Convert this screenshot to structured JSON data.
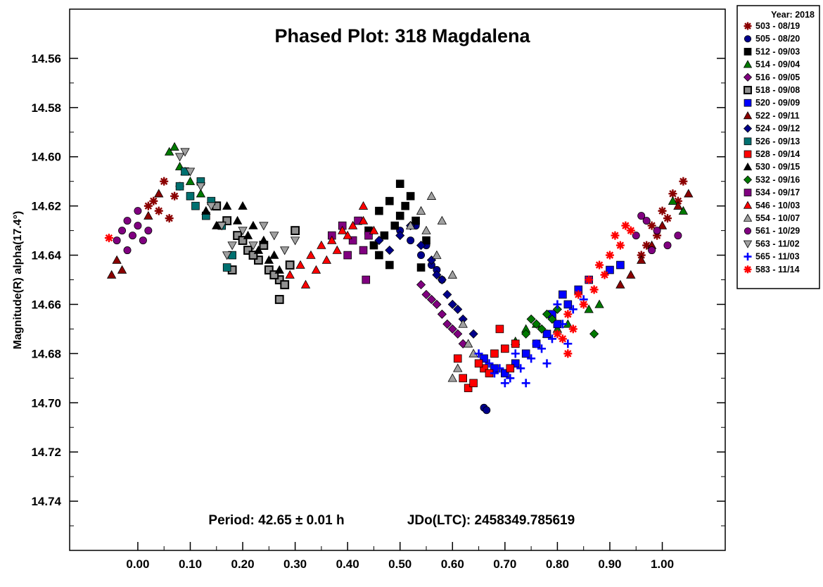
{
  "chart_data": {
    "type": "scatter",
    "title": "Phased Plot: 318 Magdalena",
    "ylabel": "Magnitude(R) alpha(17.4°)",
    "xlabel": "",
    "xlim": [
      -0.13,
      1.12
    ],
    "ylim": [
      14.76,
      14.54
    ],
    "y_inverted": true,
    "xticks": [
      "0.00",
      "0.10",
      "0.20",
      "0.30",
      "0.40",
      "0.50",
      "0.60",
      "0.70",
      "0.80",
      "0.90",
      "1.00"
    ],
    "yticks": [
      "14.56",
      "14.58",
      "14.60",
      "14.62",
      "14.64",
      "14.66",
      "14.68",
      "14.70",
      "14.72",
      "14.74"
    ],
    "annotation_period": "Period: 42.65 ± 0.01 h",
    "annotation_epoch": "JDo(LTC): 2458349.785619",
    "legend_title": "Year: 2018",
    "legend_position": "outside-right",
    "series": [
      {
        "name": "503 - 08/19",
        "marker": "asterisk",
        "color": "#8b0000",
        "points": [
          [
            0.03,
            14.618
          ],
          [
            0.05,
            14.61
          ],
          [
            0.07,
            14.616
          ],
          [
            0.04,
            14.622
          ],
          [
            0.06,
            14.625
          ],
          [
            0.08,
            14.612
          ],
          [
            0.02,
            14.62
          ],
          [
            0.96,
            14.64
          ],
          [
            0.98,
            14.628
          ],
          [
            1.0,
            14.622
          ],
          [
            1.02,
            14.615
          ],
          [
            1.04,
            14.61
          ],
          [
            0.99,
            14.632
          ],
          [
            1.01,
            14.625
          ],
          [
            1.03,
            14.618
          ],
          [
            0.97,
            14.636
          ]
        ]
      },
      {
        "name": "505 - 08/20",
        "marker": "circle",
        "color": "#00008b",
        "points": [
          [
            0.5,
            14.63
          ],
          [
            0.52,
            14.634
          ],
          [
            0.54,
            14.64
          ],
          [
            0.56,
            14.644
          ],
          [
            0.58,
            14.65
          ],
          [
            0.53,
            14.628
          ],
          [
            0.55,
            14.636
          ],
          [
            0.57,
            14.646
          ],
          [
            0.66,
            14.702
          ],
          [
            0.665,
            14.703
          ]
        ]
      },
      {
        "name": "512 - 09/03",
        "marker": "square",
        "color": "#000000",
        "points": [
          [
            0.44,
            14.63
          ],
          [
            0.46,
            14.622
          ],
          [
            0.48,
            14.618
          ],
          [
            0.5,
            14.624
          ],
          [
            0.52,
            14.616
          ],
          [
            0.47,
            14.632
          ],
          [
            0.49,
            14.628
          ],
          [
            0.51,
            14.62
          ],
          [
            0.45,
            14.636
          ],
          [
            0.5,
            14.611
          ],
          [
            0.53,
            14.626
          ],
          [
            0.55,
            14.634
          ],
          [
            0.46,
            14.64
          ],
          [
            0.48,
            14.644
          ],
          [
            0.54,
            14.645
          ]
        ]
      },
      {
        "name": "514 - 09/04",
        "marker": "triangle",
        "color": "#007a00",
        "points": [
          [
            0.06,
            14.598
          ],
          [
            0.08,
            14.604
          ],
          [
            0.1,
            14.61
          ],
          [
            0.12,
            14.615
          ],
          [
            0.07,
            14.596
          ],
          [
            0.09,
            14.606
          ],
          [
            0.72,
            14.675
          ],
          [
            0.74,
            14.67
          ],
          [
            0.76,
            14.668
          ],
          [
            0.78,
            14.672
          ],
          [
            0.8,
            14.67
          ],
          [
            0.82,
            14.668
          ],
          [
            0.86,
            14.662
          ],
          [
            0.88,
            14.66
          ],
          [
            1.02,
            14.618
          ],
          [
            1.04,
            14.622
          ]
        ]
      },
      {
        "name": "516 - 09/05",
        "marker": "diamond",
        "color": "#800080",
        "points": [
          [
            0.54,
            14.652
          ],
          [
            0.56,
            14.658
          ],
          [
            0.58,
            14.664
          ],
          [
            0.6,
            14.67
          ],
          [
            0.62,
            14.676
          ],
          [
            0.57,
            14.66
          ],
          [
            0.59,
            14.668
          ],
          [
            0.61,
            14.672
          ],
          [
            0.55,
            14.656
          ]
        ]
      },
      {
        "name": "518 - 09/08",
        "marker": "square-grey",
        "color": "#909090",
        "points": [
          [
            0.15,
            14.62
          ],
          [
            0.17,
            14.626
          ],
          [
            0.19,
            14.632
          ],
          [
            0.21,
            14.638
          ],
          [
            0.23,
            14.642
          ],
          [
            0.25,
            14.646
          ],
          [
            0.27,
            14.65
          ],
          [
            0.29,
            14.644
          ],
          [
            0.2,
            14.634
          ],
          [
            0.22,
            14.64
          ],
          [
            0.24,
            14.636
          ],
          [
            0.26,
            14.648
          ],
          [
            0.28,
            14.652
          ],
          [
            0.27,
            14.658
          ],
          [
            0.18,
            14.646
          ],
          [
            0.3,
            14.63
          ]
        ]
      },
      {
        "name": "520 - 09/09",
        "marker": "square",
        "color": "#0000ff",
        "points": [
          [
            0.66,
            14.682
          ],
          [
            0.68,
            14.686
          ],
          [
            0.7,
            14.688
          ],
          [
            0.72,
            14.684
          ],
          [
            0.74,
            14.68
          ],
          [
            0.76,
            14.676
          ],
          [
            0.78,
            14.672
          ],
          [
            0.8,
            14.668
          ],
          [
            0.82,
            14.66
          ],
          [
            0.84,
            14.654
          ],
          [
            0.86,
            14.65
          ],
          [
            0.9,
            14.646
          ],
          [
            0.92,
            14.644
          ],
          [
            0.79,
            14.664
          ],
          [
            0.81,
            14.656
          ]
        ]
      },
      {
        "name": "522 - 09/11",
        "marker": "triangle",
        "color": "#8b0000",
        "points": [
          [
            -0.05,
            14.648
          ],
          [
            -0.04,
            14.642
          ],
          [
            -0.03,
            14.646
          ],
          [
            0.02,
            14.624
          ],
          [
            0.04,
            14.615
          ],
          [
            0.96,
            14.642
          ],
          [
            0.98,
            14.636
          ],
          [
            1.0,
            14.628
          ],
          [
            1.03,
            14.62
          ],
          [
            1.05,
            14.615
          ],
          [
            0.94,
            14.648
          ],
          [
            0.92,
            14.652
          ]
        ]
      },
      {
        "name": "524 - 09/12",
        "marker": "diamond",
        "color": "#00008b",
        "points": [
          [
            0.46,
            14.634
          ],
          [
            0.48,
            14.638
          ],
          [
            0.5,
            14.632
          ],
          [
            0.52,
            14.628
          ],
          [
            0.54,
            14.636
          ],
          [
            0.56,
            14.642
          ],
          [
            0.58,
            14.65
          ],
          [
            0.6,
            14.66
          ],
          [
            0.62,
            14.666
          ],
          [
            0.64,
            14.672
          ],
          [
            0.57,
            14.648
          ],
          [
            0.59,
            14.656
          ],
          [
            0.61,
            14.662
          ]
        ]
      },
      {
        "name": "526 - 09/13",
        "marker": "square",
        "color": "#007070",
        "points": [
          [
            0.08,
            14.612
          ],
          [
            0.1,
            14.616
          ],
          [
            0.12,
            14.61
          ],
          [
            0.14,
            14.618
          ],
          [
            0.16,
            14.628
          ],
          [
            0.18,
            14.64
          ],
          [
            0.17,
            14.645
          ],
          [
            0.09,
            14.606
          ],
          [
            0.11,
            14.62
          ],
          [
            0.13,
            14.624
          ]
        ]
      },
      {
        "name": "528 - 09/14",
        "marker": "square",
        "color": "#ff0000",
        "points": [
          [
            0.61,
            14.682
          ],
          [
            0.62,
            14.69
          ],
          [
            0.63,
            14.694
          ],
          [
            0.64,
            14.692
          ],
          [
            0.66,
            14.686
          ],
          [
            0.68,
            14.68
          ],
          [
            0.7,
            14.678
          ],
          [
            0.72,
            14.676
          ],
          [
            0.69,
            14.67
          ],
          [
            0.71,
            14.686
          ],
          [
            0.65,
            14.684
          ],
          [
            0.67,
            14.688
          ]
        ]
      },
      {
        "name": "530 - 09/15",
        "marker": "triangle",
        "color": "#000000",
        "points": [
          [
            0.13,
            14.622
          ],
          [
            0.15,
            14.628
          ],
          [
            0.17,
            14.62
          ],
          [
            0.19,
            14.626
          ],
          [
            0.21,
            14.632
          ],
          [
            0.23,
            14.638
          ],
          [
            0.25,
            14.642
          ],
          [
            0.27,
            14.646
          ],
          [
            0.24,
            14.634
          ],
          [
            0.26,
            14.64
          ],
          [
            0.22,
            14.628
          ],
          [
            0.2,
            14.62
          ]
        ]
      },
      {
        "name": "532 - 09/16",
        "marker": "diamond",
        "color": "#007a00",
        "points": [
          [
            0.74,
            14.672
          ],
          [
            0.76,
            14.668
          ],
          [
            0.78,
            14.664
          ],
          [
            0.8,
            14.662
          ],
          [
            0.77,
            14.67
          ],
          [
            0.79,
            14.666
          ],
          [
            0.87,
            14.672
          ],
          [
            0.75,
            14.666
          ]
        ]
      },
      {
        "name": "534 - 09/17",
        "marker": "square",
        "color": "#800080",
        "points": [
          [
            0.37,
            14.632
          ],
          [
            0.39,
            14.628
          ],
          [
            0.41,
            14.634
          ],
          [
            0.43,
            14.638
          ],
          [
            0.42,
            14.626
          ],
          [
            0.44,
            14.632
          ],
          [
            0.435,
            14.65
          ],
          [
            0.4,
            14.64
          ]
        ]
      },
      {
        "name": "546 - 10/03",
        "marker": "triangle",
        "color": "#ff0000",
        "points": [
          [
            0.29,
            14.648
          ],
          [
            0.31,
            14.644
          ],
          [
            0.33,
            14.64
          ],
          [
            0.35,
            14.636
          ],
          [
            0.37,
            14.634
          ],
          [
            0.39,
            14.63
          ],
          [
            0.41,
            14.628
          ],
          [
            0.43,
            14.626
          ],
          [
            0.45,
            14.63
          ],
          [
            0.32,
            14.652
          ],
          [
            0.34,
            14.646
          ],
          [
            0.36,
            14.642
          ],
          [
            0.38,
            14.638
          ],
          [
            0.43,
            14.62
          ],
          [
            0.4,
            14.632
          ]
        ]
      },
      {
        "name": "554 - 10/07",
        "marker": "triangle",
        "color": "#a0a0a0",
        "points": [
          [
            0.52,
            14.628
          ],
          [
            0.54,
            14.622
          ],
          [
            0.56,
            14.616
          ],
          [
            0.58,
            14.626
          ],
          [
            0.6,
            14.648
          ],
          [
            0.62,
            14.668
          ],
          [
            0.64,
            14.68
          ],
          [
            0.6,
            14.69
          ],
          [
            0.61,
            14.686
          ],
          [
            0.63,
            14.676
          ],
          [
            0.57,
            14.64
          ],
          [
            0.55,
            14.63
          ]
        ]
      },
      {
        "name": "561 - 10/29",
        "marker": "circle",
        "color": "#800080",
        "points": [
          [
            -0.04,
            14.634
          ],
          [
            -0.03,
            14.63
          ],
          [
            -0.02,
            14.626
          ],
          [
            -0.01,
            14.632
          ],
          [
            0.0,
            14.628
          ],
          [
            0.01,
            14.634
          ],
          [
            0.02,
            14.63
          ],
          [
            -0.02,
            14.638
          ],
          [
            0.0,
            14.622
          ],
          [
            0.95,
            14.632
          ],
          [
            0.97,
            14.626
          ],
          [
            0.99,
            14.63
          ],
          [
            1.01,
            14.636
          ],
          [
            0.96,
            14.624
          ],
          [
            0.98,
            14.638
          ],
          [
            1.03,
            14.632
          ]
        ]
      },
      {
        "name": "563 - 11/02",
        "marker": "triangle-down",
        "color": "#a0a0a0",
        "points": [
          [
            0.08,
            14.6
          ],
          [
            0.1,
            14.606
          ],
          [
            0.12,
            14.612
          ],
          [
            0.14,
            14.62
          ],
          [
            0.16,
            14.628
          ],
          [
            0.18,
            14.636
          ],
          [
            0.2,
            14.63
          ],
          [
            0.22,
            14.636
          ],
          [
            0.24,
            14.628
          ],
          [
            0.26,
            14.632
          ],
          [
            0.28,
            14.638
          ],
          [
            0.3,
            14.634
          ],
          [
            0.09,
            14.598
          ],
          [
            0.17,
            14.64
          ]
        ]
      },
      {
        "name": "565 - 11/03",
        "marker": "plus",
        "color": "#0000ff",
        "points": [
          [
            0.65,
            14.68
          ],
          [
            0.67,
            14.684
          ],
          [
            0.69,
            14.686
          ],
          [
            0.71,
            14.69
          ],
          [
            0.73,
            14.686
          ],
          [
            0.75,
            14.682
          ],
          [
            0.77,
            14.678
          ],
          [
            0.79,
            14.674
          ],
          [
            0.81,
            14.668
          ],
          [
            0.83,
            14.662
          ],
          [
            0.85,
            14.658
          ],
          [
            0.72,
            14.68
          ],
          [
            0.74,
            14.692
          ],
          [
            0.76,
            14.676
          ],
          [
            0.78,
            14.684
          ],
          [
            0.8,
            14.66
          ],
          [
            0.7,
            14.692
          ],
          [
            0.68,
            14.688
          ],
          [
            0.82,
            14.676
          ]
        ]
      },
      {
        "name": "583 - 11/14",
        "marker": "asterisk",
        "color": "#ff0000",
        "points": [
          [
            -0.055,
            14.633
          ],
          [
            0.8,
            14.672
          ],
          [
            0.82,
            14.664
          ],
          [
            0.84,
            14.656
          ],
          [
            0.86,
            14.65
          ],
          [
            0.88,
            14.644
          ],
          [
            0.9,
            14.64
          ],
          [
            0.92,
            14.636
          ],
          [
            0.94,
            14.63
          ],
          [
            0.93,
            14.628
          ],
          [
            0.85,
            14.66
          ],
          [
            0.87,
            14.654
          ],
          [
            0.89,
            14.648
          ],
          [
            0.83,
            14.67
          ],
          [
            0.82,
            14.68
          ],
          [
            0.91,
            14.632
          ],
          [
            0.81,
            14.674
          ]
        ]
      }
    ]
  }
}
